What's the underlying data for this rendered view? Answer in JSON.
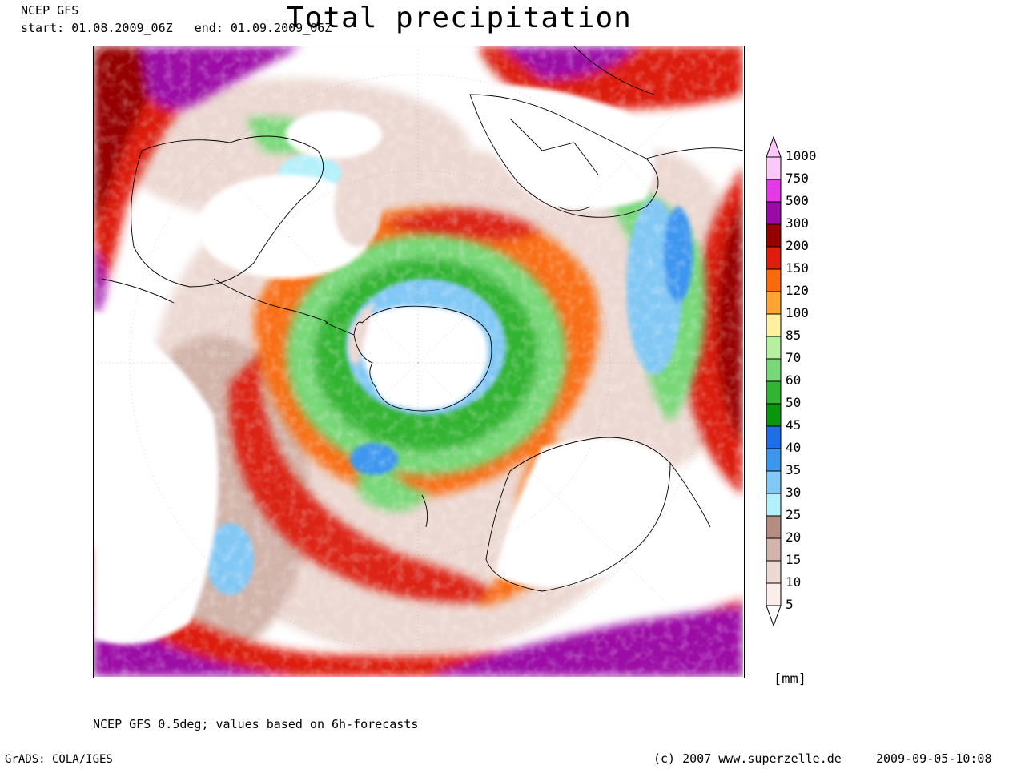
{
  "header": {
    "model": "NCEP GFS",
    "period": "start: 01.08.2009_06Z   end: 01.09.2009_06Z",
    "title": "Total precipitation"
  },
  "legend": {
    "unit": "[mm]",
    "levels": [
      {
        "label": "1000",
        "color": "#fcc8fa"
      },
      {
        "label": "750",
        "color": "#e638e6"
      },
      {
        "label": "500",
        "color": "#9c0aa6"
      },
      {
        "label": "300",
        "color": "#960000"
      },
      {
        "label": "200",
        "color": "#dc1e0a"
      },
      {
        "label": "150",
        "color": "#fa6a0a"
      },
      {
        "label": "120",
        "color": "#fca532"
      },
      {
        "label": "100",
        "color": "#fff0a0"
      },
      {
        "label": "85",
        "color": "#b4f0a0"
      },
      {
        "label": "70",
        "color": "#78d878"
      },
      {
        "label": "60",
        "color": "#32b432"
      },
      {
        "label": "50",
        "color": "#0a960a"
      },
      {
        "label": "45",
        "color": "#1e6ee6"
      },
      {
        "label": "40",
        "color": "#3c96f0"
      },
      {
        "label": "35",
        "color": "#82c8f5"
      },
      {
        "label": "30",
        "color": "#b4f0fa"
      },
      {
        "label": "25",
        "color": "#b48c82"
      },
      {
        "label": "20",
        "color": "#d2b4aa"
      },
      {
        "label": "15",
        "color": "#ecd8d2"
      },
      {
        "label": "10",
        "color": "#fbeeea"
      },
      {
        "label": "5",
        "color": "#ffffff"
      }
    ]
  },
  "footer": {
    "description": "NCEP GFS 0.5deg; values based on 6h-forecasts",
    "software": "GrADS: COLA/IGES",
    "copyright": "(c) 2007 www.superzelle.de",
    "timestamp": "2009-09-05-10:08"
  }
}
